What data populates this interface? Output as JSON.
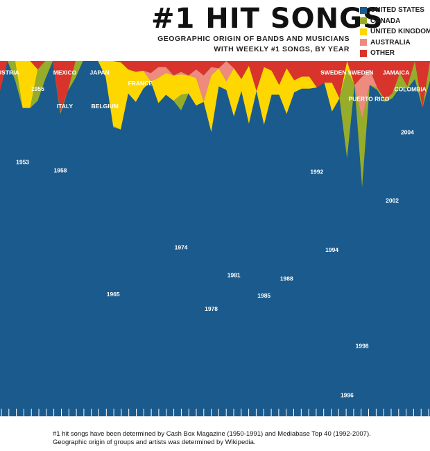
{
  "title": "#1 HIT SONGS",
  "subtitle": [
    "GEOGRAPHIC ORIGIN OF BANDS AND MUSICIANS",
    "WITH WEEKLY #1 SONGS, BY YEAR"
  ],
  "legend": [
    {
      "label": "UNITED STATES",
      "color": "#1b5a8c"
    },
    {
      "label": "CANADA",
      "color": "#97ad2a"
    },
    {
      "label": "UNITED KINGDOM",
      "color": "#ffd700"
    },
    {
      "label": "AUSTRALIA",
      "color": "#ee8a7e"
    },
    {
      "label": "OTHER",
      "color": "#d9342b"
    }
  ],
  "footnote": [
    "#1 hit songs have been determined by Cash Box Magazine (1950-1991) and Mediabase Top 40 (1992-2007).",
    "Geographic origin of groups and artists was determined by Wikipedia."
  ],
  "chart_data": {
    "type": "area",
    "stacked": true,
    "normalized": true,
    "x": [
      1950,
      1951,
      1952,
      1953,
      1954,
      1955,
      1956,
      1957,
      1958,
      1959,
      1960,
      1961,
      1962,
      1963,
      1964,
      1965,
      1966,
      1967,
      1968,
      1969,
      1970,
      1971,
      1972,
      1973,
      1974,
      1975,
      1976,
      1977,
      1978,
      1979,
      1980,
      1981,
      1982,
      1983,
      1984,
      1985,
      1986,
      1987,
      1988,
      1989,
      1990,
      1991,
      1992,
      1993,
      1994,
      1995,
      1996,
      1997,
      1998,
      1999,
      2000,
      2001,
      2002,
      2003,
      2004,
      2005,
      2006,
      2007
    ],
    "series": [
      {
        "name": "UNITED STATES",
        "color": "#1b5a8c",
        "values": [
          0.75,
          1.0,
          0.84,
          0.61,
          0.61,
          0.67,
          0.85,
          1.0,
          0.56,
          0.75,
          0.86,
          1.0,
          1.0,
          1.0,
          0.87,
          0.45,
          0.43,
          0.73,
          0.66,
          0.77,
          0.83,
          0.65,
          0.72,
          0.67,
          0.59,
          0.73,
          0.63,
          0.66,
          0.41,
          0.79,
          0.76,
          0.54,
          0.75,
          0.48,
          0.75,
          0.47,
          0.72,
          0.72,
          0.56,
          0.74,
          0.77,
          0.77,
          0.78,
          0.82,
          0.58,
          0.69,
          0.19,
          0.8,
          0.3,
          0.8,
          0.76,
          0.66,
          0.69,
          0.78,
          0.77,
          0.85,
          0.61,
          0.84
        ]
      },
      {
        "name": "CANADA",
        "color": "#97ad2a",
        "values": [
          0.0,
          0.0,
          0.16,
          0.0,
          0.0,
          0.26,
          0.15,
          0.0,
          0.02,
          0.0,
          0.14,
          0.0,
          0.0,
          0.0,
          0.0,
          0.01,
          0.0,
          0.0,
          0.0,
          0.0,
          0.0,
          0.0,
          0.0,
          0.0,
          0.13,
          0.0,
          0.0,
          0.0,
          0.0,
          0.0,
          0.0,
          0.0,
          0.0,
          0.0,
          0.0,
          0.0,
          0.0,
          0.0,
          0.0,
          0.0,
          0.0,
          0.0,
          0.0,
          0.0,
          0.0,
          0.0,
          0.74,
          0.0,
          0.57,
          0.0,
          0.02,
          0.02,
          0.04,
          0.12,
          0.02,
          0.15,
          0.0,
          0.16
        ]
      },
      {
        "name": "UNITED KINGDOM",
        "color": "#ffd700",
        "values": [
          0.0,
          0.0,
          0.0,
          0.39,
          0.39,
          0.0,
          0.0,
          0.0,
          0.0,
          0.0,
          0.0,
          0.0,
          0.0,
          0.0,
          0.13,
          0.54,
          0.56,
          0.2,
          0.25,
          0.15,
          0.0,
          0.21,
          0.18,
          0.21,
          0.17,
          0.15,
          0.23,
          0.0,
          0.47,
          0.15,
          0.07,
          0.4,
          0.1,
          0.48,
          0.0,
          0.48,
          0.2,
          0.08,
          0.38,
          0.1,
          0.1,
          0.1,
          0.0,
          0.0,
          0.24,
          0.0,
          0.07,
          0.0,
          0.0,
          0.0,
          0.0,
          0.0,
          0.0,
          0.0,
          0.0,
          0.0,
          0.0,
          0.0
        ]
      },
      {
        "name": "AUSTRALIA",
        "color": "#ee8a7e",
        "values": [
          0.0,
          0.0,
          0.0,
          0.0,
          0.0,
          0.0,
          0.0,
          0.0,
          0.0,
          0.0,
          0.0,
          0.0,
          0.0,
          0.0,
          0.0,
          0.0,
          0.0,
          0.0,
          0.0,
          0.0,
          0.07,
          0.09,
          0.05,
          0.0,
          0.02,
          0.0,
          0.07,
          0.22,
          0.07,
          0.0,
          0.17,
          0.0,
          0.0,
          0.0,
          0.0,
          0.0,
          0.0,
          0.0,
          0.0,
          0.0,
          0.0,
          0.0,
          0.0,
          0.0,
          0.0,
          0.0,
          0.0,
          0.0,
          0.35,
          0.13,
          0.0,
          0.0,
          0.0,
          0.0,
          0.0,
          0.0,
          0.0,
          0.0
        ]
      },
      {
        "name": "OTHER",
        "color": "#d9342b",
        "values": [
          0.25,
          0.0,
          0.0,
          0.0,
          0.0,
          0.07,
          0.0,
          0.0,
          0.42,
          0.25,
          0.0,
          0.0,
          0.0,
          0.0,
          0.0,
          0.0,
          0.01,
          0.07,
          0.09,
          0.08,
          0.1,
          0.05,
          0.05,
          0.12,
          0.09,
          0.12,
          0.07,
          0.12,
          0.05,
          0.06,
          0.0,
          0.06,
          0.15,
          0.04,
          0.25,
          0.05,
          0.08,
          0.2,
          0.06,
          0.16,
          0.13,
          0.13,
          0.22,
          0.18,
          0.18,
          0.31,
          0.0,
          0.2,
          0.13,
          0.07,
          0.22,
          0.32,
          0.27,
          0.1,
          0.21,
          0.0,
          0.39,
          0.0
        ]
      }
    ],
    "year_labels": [
      {
        "text": "1953",
        "year": 1953,
        "level": 0.8
      },
      {
        "text": "1955",
        "year": 1955,
        "level": 0.19
      },
      {
        "text": "1958",
        "year": 1958,
        "level": 0.87
      },
      {
        "text": "1965",
        "year": 1965,
        "level": 1.9
      },
      {
        "text": "1974",
        "year": 1974,
        "level": 1.51
      },
      {
        "text": "1978",
        "year": 1978,
        "level": 2.02
      },
      {
        "text": "1981",
        "year": 1981,
        "level": 1.74
      },
      {
        "text": "1985",
        "year": 1985,
        "level": 1.91
      },
      {
        "text": "1988",
        "year": 1988,
        "level": 1.77
      },
      {
        "text": "1992",
        "year": 1992,
        "level": 0.88
      },
      {
        "text": "1994",
        "year": 1994,
        "level": 1.53
      },
      {
        "text": "1996",
        "year": 1996,
        "level": 2.74
      },
      {
        "text": "1998",
        "year": 1998,
        "level": 2.33
      },
      {
        "text": "2002",
        "year": 2002,
        "level": 1.12
      },
      {
        "text": "2004",
        "year": 2004,
        "level": 0.55
      }
    ],
    "country_labels": [
      {
        "text": "AUSTRIA",
        "year": 1950.8,
        "level": 0.06
      },
      {
        "text": "MEXICO",
        "year": 1958.6,
        "level": 0.06
      },
      {
        "text": "ITALY",
        "year": 1958.6,
        "level": 0.34
      },
      {
        "text": "JAPAN",
        "year": 1963.2,
        "level": 0.06
      },
      {
        "text": "BELGIUM",
        "year": 1963.9,
        "level": 0.34
      },
      {
        "text": "FRANCE",
        "year": 1968.6,
        "level": 0.15
      },
      {
        "text": "SWEDEN",
        "year": 1994.2,
        "level": 0.06
      },
      {
        "text": "SWEDEN",
        "year": 1997.8,
        "level": 0.06
      },
      {
        "text": "PUERTO RICO",
        "year": 1998.9,
        "level": 0.28
      },
      {
        "text": "JAMAICA",
        "year": 2002.5,
        "level": 0.06
      },
      {
        "text": "COLOMBIA",
        "year": 2004.4,
        "level": 0.2
      }
    ],
    "ticks": 58
  }
}
